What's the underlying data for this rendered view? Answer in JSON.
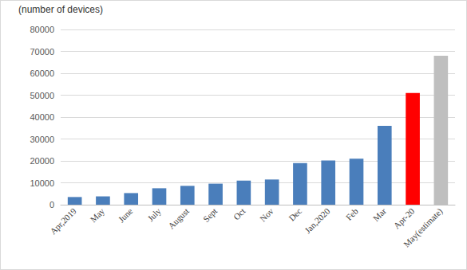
{
  "chart_data": {
    "type": "bar",
    "y_label": "(number of devices)",
    "categories": [
      "Apr,2019",
      "May",
      "June",
      "July",
      "August",
      "Sept",
      "Oct",
      "Nov",
      "Dec",
      "Jan,2020",
      "Feb",
      "Mar",
      "Apr-20",
      "May(estimate)"
    ],
    "values": [
      3500,
      3800,
      5300,
      7500,
      8600,
      9600,
      11000,
      11500,
      19000,
      20200,
      21000,
      36000,
      51000,
      68000
    ],
    "colors": [
      "#4a7ebb",
      "#4a7ebb",
      "#4a7ebb",
      "#4a7ebb",
      "#4a7ebb",
      "#4a7ebb",
      "#4a7ebb",
      "#4a7ebb",
      "#4a7ebb",
      "#4a7ebb",
      "#4a7ebb",
      "#4a7ebb",
      "#ff0000",
      "#bfbfbf"
    ],
    "ylim": [
      0,
      80000
    ],
    "yticks": [
      0,
      10000,
      20000,
      30000,
      40000,
      50000,
      60000,
      70000,
      80000
    ],
    "grid": true
  }
}
